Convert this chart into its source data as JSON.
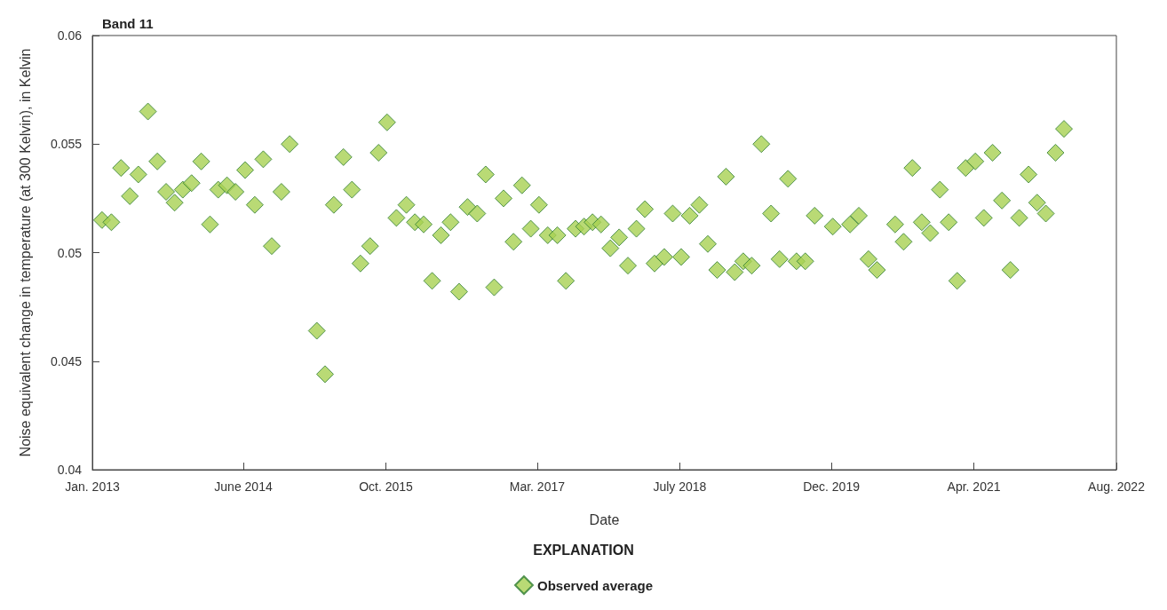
{
  "chart_data": {
    "type": "scatter",
    "title": "Band 11",
    "xlabel": "Date",
    "ylabel": "Noise equivalent change in temperature (at 300 Kelvin), in Kelvin",
    "legend_title": "EXPLANATION",
    "x": [
      "2013-02-03",
      "2013-03-07",
      "2013-04-09",
      "2013-05-09",
      "2013-06-07",
      "2013-07-10",
      "2013-08-11",
      "2013-09-10",
      "2013-10-09",
      "2013-11-06",
      "2013-12-06",
      "2014-01-08",
      "2014-02-07",
      "2014-03-07",
      "2014-04-06",
      "2014-05-05",
      "2014-06-07",
      "2014-07-10",
      "2014-08-08",
      "2014-09-06",
      "2014-10-09",
      "2014-11-06",
      "2015-02-07",
      "2015-03-07",
      "2015-04-06",
      "2015-05-09",
      "2015-06-07",
      "2015-07-06",
      "2015-08-08",
      "2015-09-06",
      "2015-10-05",
      "2015-11-06",
      "2015-12-10",
      "2016-01-08",
      "2016-02-07",
      "2016-03-07",
      "2016-04-06",
      "2016-05-09",
      "2016-06-07",
      "2016-07-06",
      "2016-08-08",
      "2016-09-06",
      "2016-10-05",
      "2016-11-06",
      "2016-12-10",
      "2017-01-08",
      "2017-02-07",
      "2017-03-07",
      "2017-04-06",
      "2017-05-09",
      "2017-06-07",
      "2017-07-10",
      "2017-08-08",
      "2017-09-06",
      "2017-10-05",
      "2017-11-06",
      "2017-12-06",
      "2018-01-05",
      "2018-02-03",
      "2018-03-04",
      "2018-04-06",
      "2018-05-09",
      "2018-06-07",
      "2018-07-06",
      "2018-08-04",
      "2018-09-06",
      "2018-10-05",
      "2018-11-06",
      "2018-12-06",
      "2019-01-05",
      "2019-02-03",
      "2019-03-04",
      "2019-04-06",
      "2019-05-09",
      "2019-06-07",
      "2019-07-06",
      "2019-08-04",
      "2019-09-03",
      "2019-10-05",
      "2019-12-06",
      "2020-02-03",
      "2020-03-04",
      "2020-04-06",
      "2020-05-05",
      "2020-07-06",
      "2020-08-04",
      "2020-09-03",
      "2020-10-05",
      "2020-11-03",
      "2020-12-06",
      "2021-01-05",
      "2021-02-03",
      "2021-03-04",
      "2021-04-06",
      "2021-05-05",
      "2021-06-04",
      "2021-07-06",
      "2021-08-04",
      "2021-09-03",
      "2021-10-05",
      "2021-11-03",
      "2021-12-03",
      "2022-01-05",
      "2022-02-03"
    ],
    "series": [
      {
        "name": "Observed average",
        "color": "#a8d152",
        "values": [
          0.0515,
          0.0514,
          0.0539,
          0.0526,
          0.0536,
          0.0565,
          0.0542,
          0.0528,
          0.0523,
          0.0529,
          0.0532,
          0.0542,
          0.0513,
          0.0529,
          0.0531,
          0.0528,
          0.0538,
          0.0522,
          0.0543,
          0.0503,
          0.0528,
          0.055,
          0.0464,
          0.0444,
          0.0522,
          0.0544,
          0.0529,
          0.0495,
          0.0503,
          0.0546,
          0.056,
          0.0516,
          0.0522,
          0.0514,
          0.0513,
          0.0487,
          0.0508,
          0.0514,
          0.0482,
          0.0521,
          0.0518,
          0.0536,
          0.0484,
          0.0525,
          0.0505,
          0.0531,
          0.0511,
          0.0522,
          0.0508,
          0.0508,
          0.0487,
          0.0511,
          0.0512,
          0.0514,
          0.0513,
          0.0502,
          0.0507,
          0.0494,
          0.0511,
          0.052,
          0.0495,
          0.0498,
          0.0518,
          0.0498,
          0.0517,
          0.0522,
          0.0504,
          0.0492,
          0.0535,
          0.0491,
          0.0496,
          0.0494,
          0.055,
          0.0518,
          0.0497,
          0.0534,
          0.0496,
          0.0496,
          0.0517,
          0.0512,
          0.0513,
          0.0517,
          0.0497,
          0.0492,
          0.0513,
          0.0505,
          0.0539,
          0.0514,
          0.0509,
          0.0529,
          0.0514,
          0.0487,
          0.0539,
          0.0542,
          0.0516,
          0.0546,
          0.0524,
          0.0492,
          0.0516,
          0.0536,
          0.0523,
          0.0518,
          0.0546,
          0.0557
        ]
      }
    ],
    "xlim": [
      "2013-01-01",
      "2022-08-01"
    ],
    "xticks": [
      {
        "value": "2013-01-01",
        "label": "Jan. 2013"
      },
      {
        "value": "2014-06-01",
        "label": "June 2014"
      },
      {
        "value": "2015-10-01",
        "label": "Oct. 2015"
      },
      {
        "value": "2017-03-01",
        "label": "Mar. 2017"
      },
      {
        "value": "2018-07-01",
        "label": "July 2018"
      },
      {
        "value": "2019-12-01",
        "label": "Dec. 2019"
      },
      {
        "value": "2021-04-01",
        "label": "Apr. 2021"
      },
      {
        "value": "2022-08-01",
        "label": "Aug. 2022"
      }
    ],
    "ylim": [
      0.04,
      0.06
    ],
    "yticks": [
      0.04,
      0.045,
      0.05,
      0.055,
      0.06
    ],
    "grid": false,
    "legend": "bottom",
    "marker": "diamond"
  }
}
